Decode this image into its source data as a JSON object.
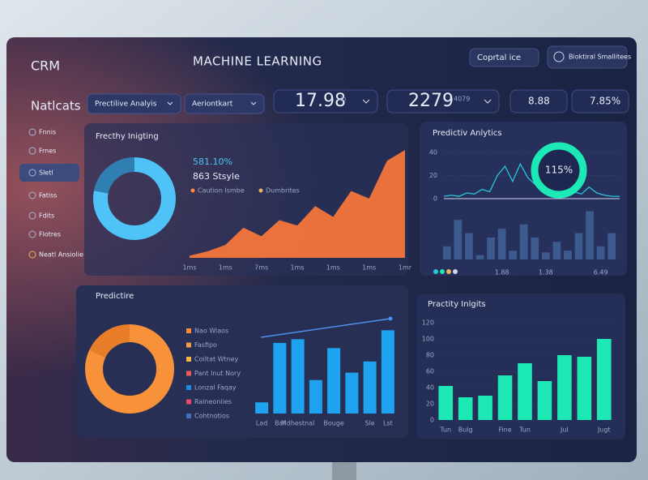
{
  "header": {
    "brand": "CRM",
    "title": "MACHINE LEARNING",
    "dropdown": "Coprtal ice",
    "user": "Bioktiral Smallitees"
  },
  "toolbar": {
    "section": "Natlcats",
    "filters": [
      "Prectilive Analyis",
      "Aeriontkart"
    ],
    "stats": [
      {
        "text": "17.98",
        "note": "lb"
      },
      {
        "text": "2279",
        "note": "4079"
      },
      {
        "text": "8.88"
      },
      {
        "text": "7.85%"
      }
    ]
  },
  "sidebar": {
    "items": [
      "Fnnis",
      "Frnes",
      "Sletl",
      "Fatiss",
      "Fdits",
      "Flotres",
      "Neatl Ansiolie"
    ],
    "active": 2
  },
  "panels": [
    {
      "title": "Frecthy Inigting",
      "stats": [
        "581.10%",
        "863 Stsyle"
      ],
      "legend": [
        "Caution Ismbe",
        "Dumbrites"
      ],
      "legend_colors": [
        "#ff8a3d",
        "#f0b060"
      ],
      "donut": {
        "values": [
          78,
          22
        ],
        "colors": [
          "#4fc3f7",
          "#2f7fb3"
        ]
      },
      "area": {
        "type": "area",
        "categories": [
          "1ms",
          null,
          "1ms",
          null,
          "7ms",
          null,
          "1ms",
          null,
          "1ms",
          null,
          "1ms",
          null,
          "1mr"
        ],
        "values": [
          2,
          6,
          12,
          28,
          20,
          35,
          30,
          48,
          38,
          62,
          55,
          90,
          100
        ],
        "ylim": [
          0,
          100
        ],
        "color": "#ff7a3a"
      }
    },
    {
      "title": "Predictiv Anlytics",
      "gauge": "115%",
      "line": {
        "type": "line",
        "values": [
          2,
          3,
          2,
          5,
          4,
          8,
          6,
          20,
          28,
          15,
          30,
          18,
          12,
          25,
          10,
          8,
          12,
          6,
          4,
          10,
          5,
          3,
          2,
          2
        ],
        "ylim": [
          0,
          40
        ],
        "yticks": [
          0,
          20,
          40
        ],
        "color": "#26c6da"
      },
      "bars": {
        "type": "bar",
        "categories": [
          null,
          null,
          null,
          null,
          null,
          "1.88",
          null,
          null,
          null,
          "1.38",
          null,
          null,
          null,
          null,
          "6.49",
          null
        ],
        "values": [
          15,
          45,
          30,
          5,
          25,
          35,
          10,
          40,
          25,
          8,
          20,
          10,
          30,
          55,
          15,
          30
        ],
        "ylim": [
          0,
          60
        ],
        "color": "#3d5a8f"
      }
    },
    {
      "title": "Predictire",
      "legend": [
        "Nao Wiaos",
        "Fasfipo",
        "Coiltat Wtney",
        "Pant lnut Nory",
        "Lonzal Faqay",
        "Raineoniies",
        "Cohtnotios"
      ],
      "legend_colors": [
        "#ff8a3d",
        "#f29b4b",
        "#f5b54a",
        "#ef5a5a",
        "#1e88e5",
        "#e64a6a",
        "#3f6fbf"
      ],
      "donut": {
        "values": [
          82,
          18
        ],
        "colors": [
          "#f7923a",
          "#e87e2a"
        ]
      },
      "bars": {
        "type": "bar",
        "categories": [
          "Lad",
          "Bal",
          "Mdhestnal",
          null,
          "Bouge",
          null,
          "Sle",
          "Lst"
        ],
        "values": [
          15,
          95,
          100,
          45,
          88,
          55,
          70,
          112
        ],
        "ylim": [
          0,
          120
        ],
        "color": "#1fa2f0"
      }
    },
    {
      "title": "Practity Inlgits",
      "bars": {
        "type": "bar",
        "categories": [
          "Tun",
          "Bulg",
          null,
          "Fine",
          "Tun",
          null,
          "Jul",
          null,
          "Jugt"
        ],
        "values": [
          42,
          28,
          30,
          55,
          70,
          48,
          80,
          78,
          100
        ],
        "ylim": [
          0,
          120
        ],
        "yticks": [
          0,
          20,
          40,
          60,
          80,
          100,
          120
        ],
        "color": "#1de9b6"
      }
    }
  ]
}
